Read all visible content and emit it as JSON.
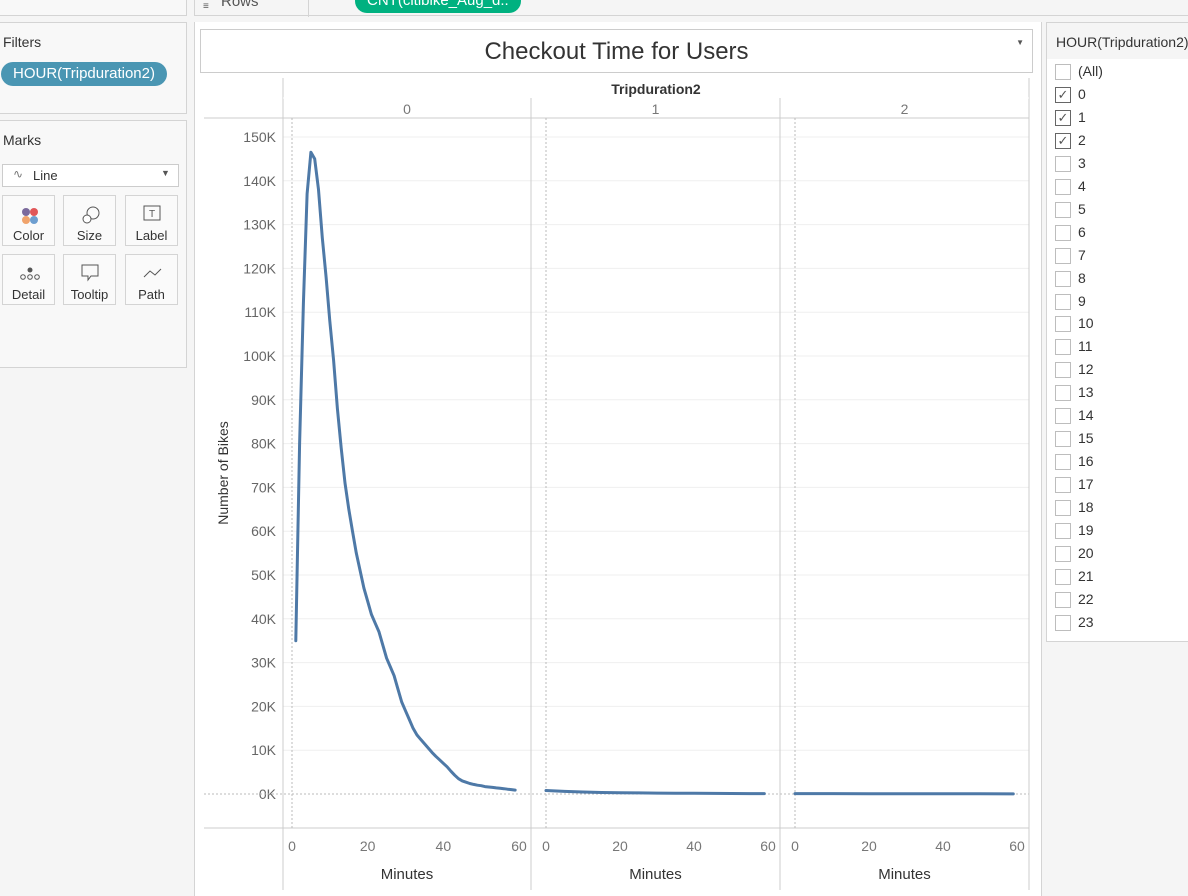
{
  "shelf": {
    "rows_label": "Rows",
    "rows_pill": "CNT(citibike_Aug_d.."
  },
  "filters": {
    "title": "Filters",
    "pill": "HOUR(Tripduration2)"
  },
  "marks": {
    "title": "Marks",
    "type": "Line",
    "buttons": [
      {
        "label": "Color",
        "icon": "color-icon"
      },
      {
        "label": "Size",
        "icon": "size-icon"
      },
      {
        "label": "Label",
        "icon": "label-icon"
      },
      {
        "label": "Detail",
        "icon": "detail-icon"
      },
      {
        "label": "Tooltip",
        "icon": "tooltip-icon"
      },
      {
        "label": "Path",
        "icon": "path-icon"
      }
    ]
  },
  "quick_filter": {
    "title": "HOUR(Tripduration2)",
    "items": [
      {
        "label": "(All)",
        "checked": false
      },
      {
        "label": "0",
        "checked": true
      },
      {
        "label": "1",
        "checked": true
      },
      {
        "label": "2",
        "checked": true
      },
      {
        "label": "3",
        "checked": false
      },
      {
        "label": "4",
        "checked": false
      },
      {
        "label": "5",
        "checked": false
      },
      {
        "label": "6",
        "checked": false
      },
      {
        "label": "7",
        "checked": false
      },
      {
        "label": "8",
        "checked": false
      },
      {
        "label": "9",
        "checked": false
      },
      {
        "label": "10",
        "checked": false
      },
      {
        "label": "11",
        "checked": false
      },
      {
        "label": "12",
        "checked": false
      },
      {
        "label": "13",
        "checked": false
      },
      {
        "label": "14",
        "checked": false
      },
      {
        "label": "15",
        "checked": false
      },
      {
        "label": "16",
        "checked": false
      },
      {
        "label": "17",
        "checked": false
      },
      {
        "label": "18",
        "checked": false
      },
      {
        "label": "19",
        "checked": false
      },
      {
        "label": "20",
        "checked": false
      },
      {
        "label": "21",
        "checked": false
      },
      {
        "label": "22",
        "checked": false
      },
      {
        "label": "23",
        "checked": false
      }
    ]
  },
  "colors": {
    "line": "#4e79a7",
    "filter_pill": "#4a96b3",
    "rows_pill": "#00b180"
  },
  "chart_data": {
    "type": "line",
    "title": "Checkout Time for Users",
    "column_header": "Tripduration2",
    "xlabel": "Minutes",
    "ylabel": "Number of Bikes",
    "xlim": [
      0,
      60
    ],
    "ylim": [
      0,
      150000
    ],
    "x_ticks": [
      "0",
      "20",
      "40",
      "60"
    ],
    "y_ticks": [
      "0K",
      "10K",
      "20K",
      "30K",
      "40K",
      "50K",
      "60K",
      "70K",
      "80K",
      "90K",
      "100K",
      "110K",
      "120K",
      "130K",
      "140K",
      "150K"
    ],
    "panels": [
      {
        "label": "0",
        "x": [
          1,
          2,
          3,
          4,
          5,
          6,
          7,
          8,
          9,
          10,
          11,
          12,
          13,
          14,
          15,
          16,
          17,
          18,
          19,
          20,
          21,
          22,
          23,
          24,
          25,
          26,
          27,
          28,
          29,
          30,
          31,
          32,
          33,
          34,
          35,
          36,
          37,
          38,
          39,
          40,
          41,
          42,
          43,
          44,
          45,
          46,
          47,
          48,
          49,
          50,
          51,
          52,
          53,
          54,
          55,
          56,
          57,
          58,
          59
        ],
        "y": [
          35000,
          80000,
          112000,
          137000,
          146500,
          145000,
          138000,
          127000,
          118000,
          108000,
          99000,
          88000,
          79000,
          71000,
          65000,
          60000,
          55000,
          51000,
          47000,
          44000,
          41000,
          39000,
          37000,
          34000,
          31000,
          29000,
          27000,
          24000,
          21000,
          19000,
          17000,
          15000,
          13500,
          12500,
          11500,
          10500,
          9500,
          8600,
          7800,
          7000,
          6200,
          5200,
          4300,
          3500,
          3000,
          2700,
          2400,
          2200,
          2000,
          1900,
          1700,
          1600,
          1500,
          1400,
          1300,
          1200,
          1100,
          1000,
          900
        ]
      },
      {
        "label": "1",
        "x": [
          0,
          5,
          10,
          15,
          20,
          25,
          30,
          35,
          40,
          45,
          50,
          55,
          59
        ],
        "y": [
          800,
          600,
          450,
          350,
          300,
          250,
          200,
          170,
          150,
          130,
          110,
          100,
          90
        ]
      },
      {
        "label": "2",
        "x": [
          0,
          10,
          20,
          30,
          40,
          50,
          59
        ],
        "y": [
          90,
          80,
          70,
          60,
          50,
          40,
          30
        ]
      }
    ]
  }
}
